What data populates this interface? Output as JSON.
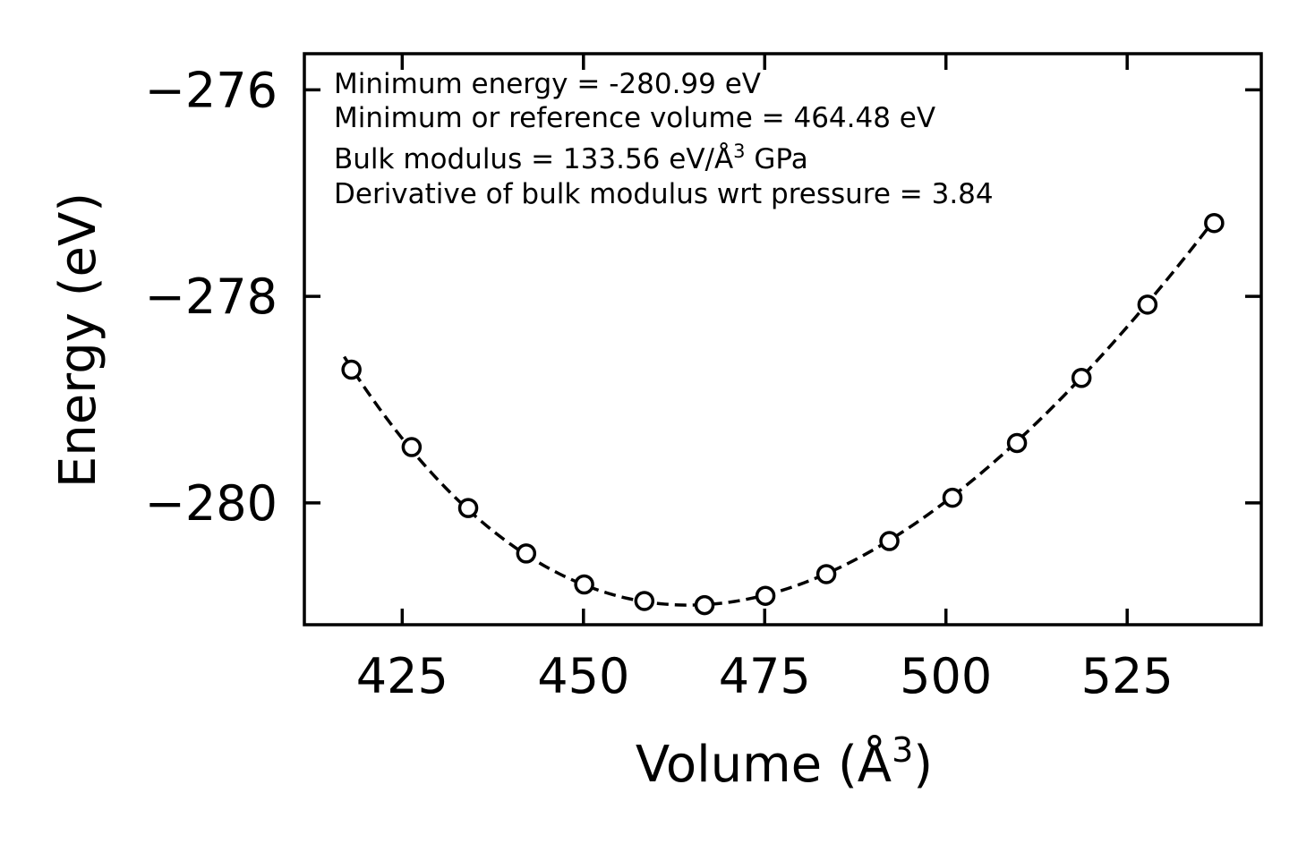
{
  "chart_data": {
    "type": "scatter",
    "title": "",
    "xlabel": "Volume (Å",
    "xlabel_sup": "3",
    "xlabel_close": ")",
    "ylabel": "Energy (eV)",
    "xlim": [
      411.5,
      543.5
    ],
    "ylim": [
      -281.18,
      -275.65
    ],
    "xticks": [
      425,
      450,
      475,
      500,
      525
    ],
    "xtick_labels": [
      "425",
      "450",
      "475",
      "500",
      "525"
    ],
    "yticks": [
      -276,
      -278,
      -280
    ],
    "ytick_labels": [
      "−276",
      "−278",
      "−280"
    ],
    "series": [
      {
        "name": "data",
        "style": "open-circle",
        "x": [
          418.0,
          426.3,
          434.1,
          442.1,
          450.1,
          458.4,
          466.7,
          475.1,
          483.5,
          492.2,
          500.9,
          509.8,
          518.7,
          527.8,
          537.0
        ],
        "y": [
          -278.71,
          -279.46,
          -280.05,
          -280.49,
          -280.79,
          -280.95,
          -280.99,
          -280.9,
          -280.69,
          -280.37,
          -279.95,
          -279.42,
          -278.79,
          -278.08,
          -277.29
        ]
      },
      {
        "name": "fit",
        "style": "dashed-line",
        "eos": {
          "E0": -280.99,
          "V0": 464.48,
          "B0": 133.56,
          "B0_prime": 3.84
        },
        "x_range": [
          417.0,
          538.0
        ]
      }
    ],
    "annotations": [
      {
        "id": "min_energy",
        "text": "Minimum energy = -280.99 eV"
      },
      {
        "id": "min_volume",
        "text": "Minimum or reference volume = 464.48 eV"
      },
      {
        "id": "bulk_modulus",
        "text": "Bulk modulus = 133.56 eV/Å",
        "sup": "3",
        "suffix": " GPa"
      },
      {
        "id": "bulk_derivative",
        "text": "Derivative of bulk modulus wrt pressure = 3.84"
      }
    ],
    "grid": false,
    "legend": "none",
    "colors": {
      "line": "#000000",
      "marker": "#000000",
      "background": "#ffffff"
    }
  }
}
